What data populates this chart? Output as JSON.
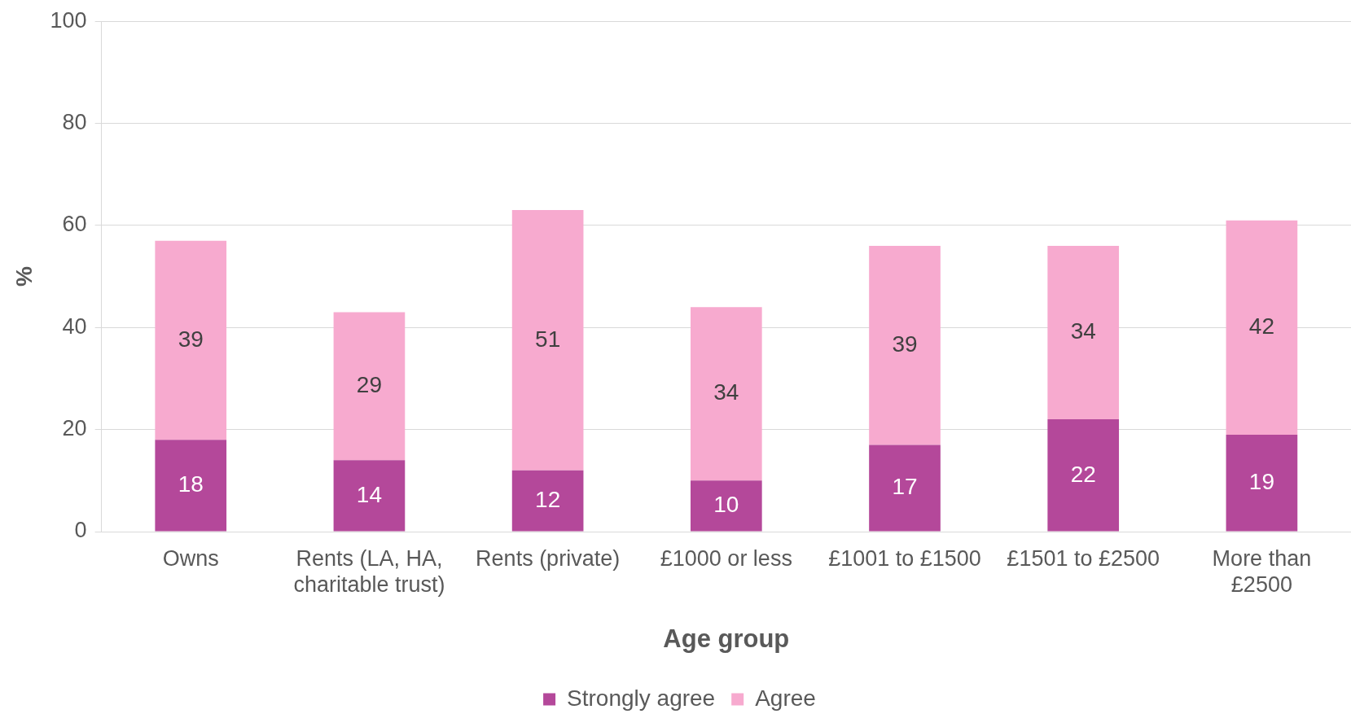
{
  "chart_data": {
    "type": "bar",
    "stacked": true,
    "ylabel": "%",
    "xlabel": "Age group",
    "categories": [
      "Owns",
      "Rents (LA, HA, charitable trust)",
      "Rents (private)",
      "£1000 or less",
      "£1001 to £1500",
      "£1501 to £2500",
      "More than £2500"
    ],
    "series": [
      {
        "name": "Strongly agree",
        "color": "#b4489a",
        "values": [
          18,
          14,
          12,
          10,
          17,
          22,
          19
        ]
      },
      {
        "name": "Agree",
        "color": "#f7aacf",
        "values": [
          39,
          29,
          51,
          34,
          39,
          34,
          42
        ]
      }
    ],
    "ylim": [
      0,
      100
    ],
    "yticks": [
      0,
      20,
      40,
      60,
      80,
      100
    ],
    "grid": "y",
    "legend": "bottom",
    "data_labels": true
  }
}
